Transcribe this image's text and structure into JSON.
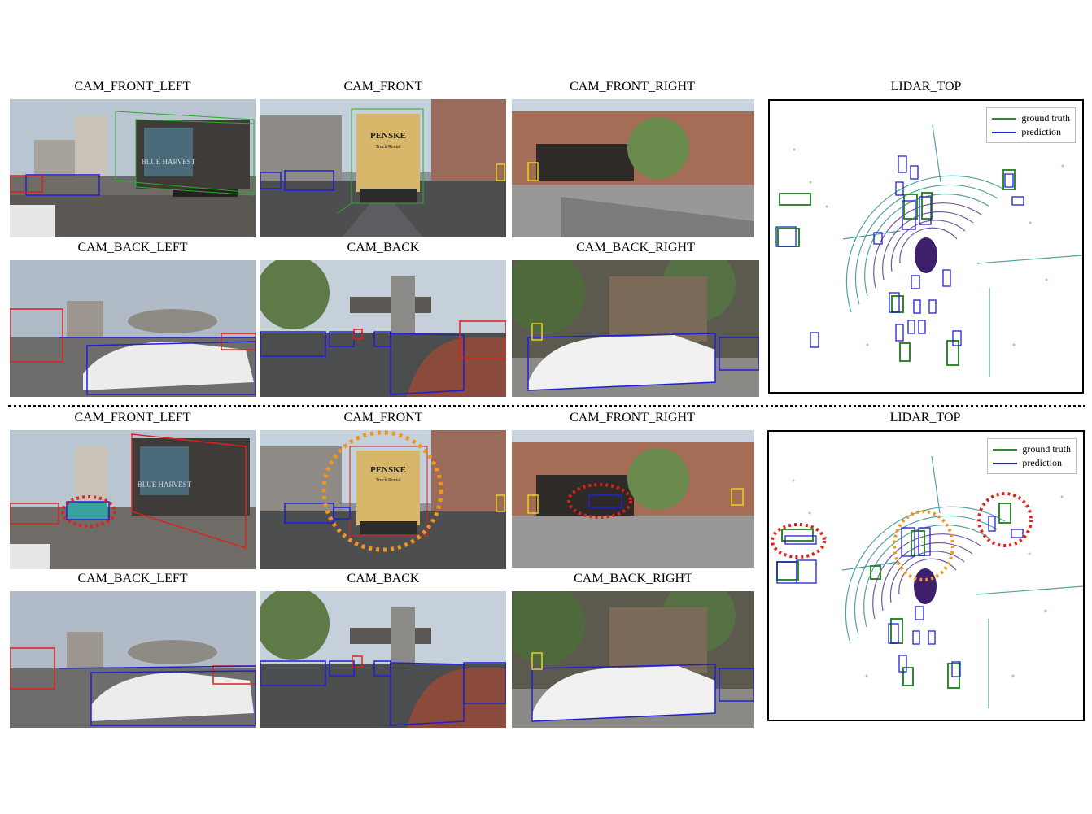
{
  "panels": [
    {
      "cams": [
        "CAM_FRONT_LEFT",
        "CAM_FRONT",
        "CAM_FRONT_RIGHT",
        "CAM_BACK_LEFT",
        "CAM_BACK",
        "CAM_BACK_RIGHT"
      ],
      "lidar": "LIDAR_TOP"
    },
    {
      "cams": [
        "CAM_FRONT_LEFT",
        "CAM_FRONT",
        "CAM_FRONT_RIGHT",
        "CAM_BACK_LEFT",
        "CAM_BACK",
        "CAM_BACK_RIGHT"
      ],
      "lidar": "LIDAR_TOP"
    }
  ],
  "legend": {
    "ground_truth": "ground truth",
    "prediction": "prediction",
    "ground_truth_color": "#2e8b2e",
    "prediction_color": "#1f1fd6"
  },
  "image_text": {
    "truck_brand": "PENSKE",
    "truck_sub": "Truck Rental",
    "trailer_text": "BLUE HARVEST"
  },
  "highlight_colors": {
    "missed": "#e0201b",
    "attention": "#f0961e"
  }
}
